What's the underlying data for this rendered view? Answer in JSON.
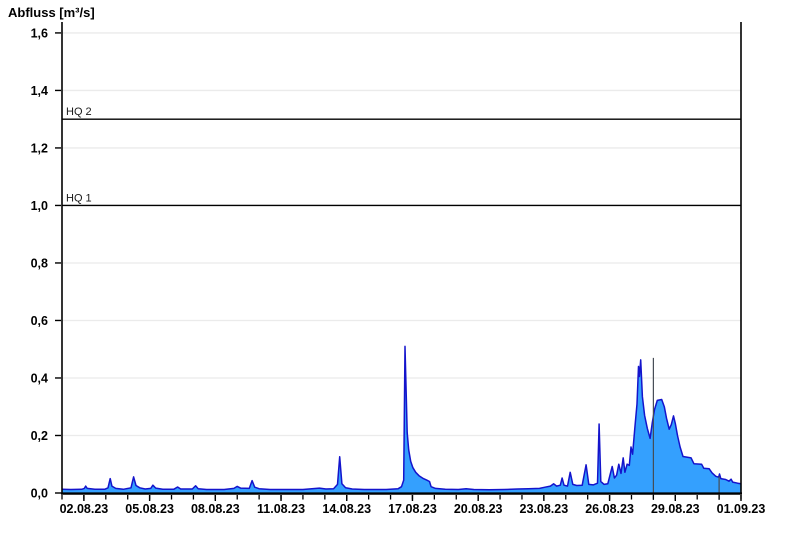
{
  "title": "Abfluss [m³/s]",
  "chart_data": {
    "type": "area",
    "title": "Abfluss [m³/s]",
    "xlabel": "",
    "ylabel": "Abfluss [m³/s]",
    "grid": "horizontal light lines at every 0.2",
    "legend": "none",
    "x_axis": {
      "start_date": "01.08.23",
      "end_date": "01.09.23",
      "span_days": 31,
      "minor_tick_every_days": 1,
      "labeled_ticks": [
        {
          "day": 1,
          "label": "02.08.23"
        },
        {
          "day": 4,
          "label": "05.08.23"
        },
        {
          "day": 7,
          "label": "08.08.23"
        },
        {
          "day": 10,
          "label": "11.08.23"
        },
        {
          "day": 13,
          "label": "14.08.23"
        },
        {
          "day": 16,
          "label": "17.08.23"
        },
        {
          "day": 19,
          "label": "20.08.23"
        },
        {
          "day": 22,
          "label": "23.08.23"
        },
        {
          "day": 25,
          "label": "26.08.23"
        },
        {
          "day": 28,
          "label": "29.08.23"
        },
        {
          "day": 31,
          "label": "01.09.23"
        }
      ]
    },
    "y_axis": {
      "ylim": [
        0,
        1.638
      ],
      "ticks": [
        {
          "value": 0.0,
          "label": "0,0"
        },
        {
          "value": 0.2,
          "label": "0,2"
        },
        {
          "value": 0.4,
          "label": "0,4"
        },
        {
          "value": 0.6,
          "label": "0,6"
        },
        {
          "value": 0.8,
          "label": "0,8"
        },
        {
          "value": 1.0,
          "label": "1,0"
        },
        {
          "value": 1.2,
          "label": "1,2"
        },
        {
          "value": 1.4,
          "label": "1,4"
        },
        {
          "value": 1.6,
          "label": "1,6"
        }
      ]
    },
    "reference_lines": [
      {
        "label": "HQ 2",
        "value": 1.3,
        "color": "#000000"
      },
      {
        "label": "HQ 1",
        "value": 1.0,
        "color": "#000000"
      }
    ],
    "marker_lines": [
      {
        "day": 27.0,
        "top_value": 0.47,
        "color": "#454c55"
      },
      {
        "day": 30.0,
        "top_value": 0.058,
        "color": "#454c55"
      }
    ],
    "colors": {
      "area_fill": "#34a0fe",
      "area_line": "#1414cc",
      "gridline": "#ebebeb",
      "axis": "#000000"
    },
    "series": [
      {
        "name": "Abfluss",
        "unit": "m³/s",
        "points_day_value": [
          [
            0,
            0.013
          ],
          [
            0.4,
            0.012
          ],
          [
            0.9,
            0.013
          ],
          [
            1.02,
            0.016
          ],
          [
            1.08,
            0.024
          ],
          [
            1.15,
            0.016
          ],
          [
            1.5,
            0.013
          ],
          [
            1.95,
            0.013
          ],
          [
            2.1,
            0.018
          ],
          [
            2.2,
            0.05
          ],
          [
            2.28,
            0.024
          ],
          [
            2.45,
            0.016
          ],
          [
            2.8,
            0.013
          ],
          [
            3.15,
            0.018
          ],
          [
            3.27,
            0.056
          ],
          [
            3.38,
            0.026
          ],
          [
            3.55,
            0.018
          ],
          [
            3.8,
            0.014
          ],
          [
            4.05,
            0.016
          ],
          [
            4.15,
            0.027
          ],
          [
            4.28,
            0.017
          ],
          [
            4.6,
            0.013
          ],
          [
            5.1,
            0.013
          ],
          [
            5.28,
            0.021
          ],
          [
            5.42,
            0.014
          ],
          [
            5.95,
            0.014
          ],
          [
            6.1,
            0.025
          ],
          [
            6.22,
            0.015
          ],
          [
            6.6,
            0.012
          ],
          [
            7.4,
            0.012
          ],
          [
            7.85,
            0.016
          ],
          [
            8.0,
            0.023
          ],
          [
            8.15,
            0.017
          ],
          [
            8.55,
            0.016
          ],
          [
            8.68,
            0.043
          ],
          [
            8.8,
            0.02
          ],
          [
            9.0,
            0.015
          ],
          [
            9.5,
            0.012
          ],
          [
            10.2,
            0.012
          ],
          [
            11.0,
            0.012
          ],
          [
            11.75,
            0.017
          ],
          [
            12.05,
            0.014
          ],
          [
            12.4,
            0.015
          ],
          [
            12.58,
            0.03
          ],
          [
            12.68,
            0.126
          ],
          [
            12.78,
            0.032
          ],
          [
            12.95,
            0.018
          ],
          [
            13.25,
            0.014
          ],
          [
            13.8,
            0.012
          ],
          [
            14.8,
            0.012
          ],
          [
            15.35,
            0.015
          ],
          [
            15.5,
            0.022
          ],
          [
            15.6,
            0.045
          ],
          [
            15.66,
            0.51
          ],
          [
            15.71,
            0.36
          ],
          [
            15.76,
            0.21
          ],
          [
            15.83,
            0.15
          ],
          [
            15.92,
            0.11
          ],
          [
            16.02,
            0.088
          ],
          [
            16.15,
            0.072
          ],
          [
            16.3,
            0.06
          ],
          [
            16.5,
            0.05
          ],
          [
            16.65,
            0.045
          ],
          [
            16.78,
            0.04
          ],
          [
            16.85,
            0.022
          ],
          [
            17.05,
            0.016
          ],
          [
            17.5,
            0.013
          ],
          [
            18.1,
            0.012
          ],
          [
            18.45,
            0.015
          ],
          [
            18.8,
            0.012
          ],
          [
            19.5,
            0.011
          ],
          [
            20.2,
            0.012
          ],
          [
            20.8,
            0.014
          ],
          [
            21.3,
            0.015
          ],
          [
            21.8,
            0.016
          ],
          [
            22.05,
            0.02
          ],
          [
            22.3,
            0.024
          ],
          [
            22.45,
            0.032
          ],
          [
            22.58,
            0.024
          ],
          [
            22.75,
            0.027
          ],
          [
            22.83,
            0.052
          ],
          [
            22.92,
            0.027
          ],
          [
            23.08,
            0.024
          ],
          [
            23.2,
            0.072
          ],
          [
            23.32,
            0.03
          ],
          [
            23.5,
            0.026
          ],
          [
            23.75,
            0.027
          ],
          [
            23.93,
            0.098
          ],
          [
            24.05,
            0.03
          ],
          [
            24.25,
            0.028
          ],
          [
            24.45,
            0.034
          ],
          [
            24.52,
            0.24
          ],
          [
            24.6,
            0.04
          ],
          [
            24.75,
            0.03
          ],
          [
            24.92,
            0.032
          ],
          [
            25.05,
            0.072
          ],
          [
            25.12,
            0.092
          ],
          [
            25.22,
            0.052
          ],
          [
            25.32,
            0.062
          ],
          [
            25.42,
            0.1
          ],
          [
            25.52,
            0.068
          ],
          [
            25.62,
            0.122
          ],
          [
            25.7,
            0.072
          ],
          [
            25.8,
            0.1
          ],
          [
            25.9,
            0.096
          ],
          [
            25.98,
            0.16
          ],
          [
            26.05,
            0.135
          ],
          [
            26.15,
            0.225
          ],
          [
            26.25,
            0.31
          ],
          [
            26.32,
            0.44
          ],
          [
            26.36,
            0.405
          ],
          [
            26.42,
            0.463
          ],
          [
            26.5,
            0.335
          ],
          [
            26.6,
            0.27
          ],
          [
            26.72,
            0.225
          ],
          [
            26.85,
            0.19
          ],
          [
            26.95,
            0.245
          ],
          [
            27.05,
            0.29
          ],
          [
            27.18,
            0.322
          ],
          [
            27.38,
            0.325
          ],
          [
            27.5,
            0.3
          ],
          [
            27.6,
            0.26
          ],
          [
            27.72,
            0.222
          ],
          [
            27.82,
            0.238
          ],
          [
            27.92,
            0.268
          ],
          [
            28.0,
            0.242
          ],
          [
            28.1,
            0.2
          ],
          [
            28.22,
            0.16
          ],
          [
            28.35,
            0.127
          ],
          [
            28.72,
            0.122
          ],
          [
            28.85,
            0.102
          ],
          [
            29.2,
            0.1
          ],
          [
            29.3,
            0.086
          ],
          [
            29.55,
            0.084
          ],
          [
            29.68,
            0.07
          ],
          [
            29.85,
            0.058
          ],
          [
            29.98,
            0.055
          ],
          [
            30.02,
            0.066
          ],
          [
            30.08,
            0.05
          ],
          [
            30.3,
            0.047
          ],
          [
            30.45,
            0.041
          ],
          [
            30.55,
            0.048
          ],
          [
            30.62,
            0.038
          ],
          [
            30.85,
            0.034
          ],
          [
            31,
            0.032
          ]
        ]
      }
    ]
  }
}
